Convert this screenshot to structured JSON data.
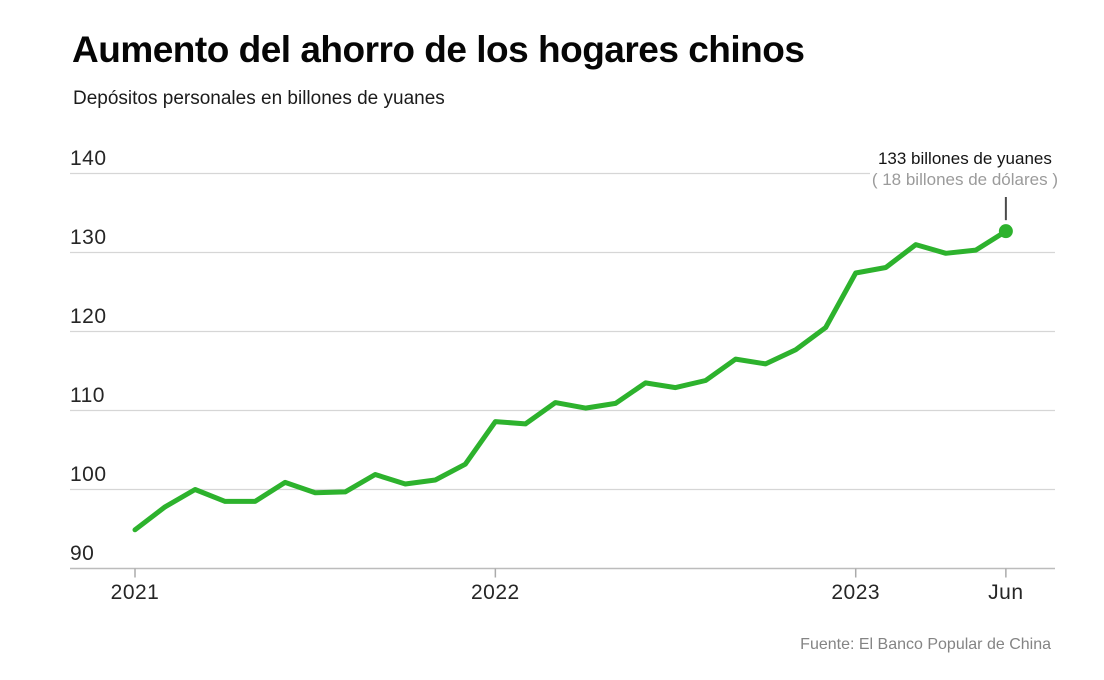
{
  "header": {
    "title": "Aumento del ahorro de los hogares chinos",
    "subtitle": "Depósitos personales en billones de yuanes"
  },
  "annotation": {
    "line1": "133 billones de yuanes",
    "line2": "( 18 billones de dólares )"
  },
  "source": "Fuente: El Banco Popular de China",
  "chart_data": {
    "type": "line",
    "title": "Aumento del ahorro de los hogares chinos",
    "subtitle": "Depósitos personales en billones de yuanes",
    "ylabel": "Depósitos personales (billones de yuanes)",
    "xlabel": "",
    "ylim": [
      90,
      140
    ],
    "grid": "horizontal",
    "legend": "none",
    "y_ticks": [
      90,
      100,
      110,
      120,
      130,
      140
    ],
    "x_tick_labels": [
      {
        "label": "2021",
        "month_index": 0
      },
      {
        "label": "2022",
        "month_index": 12
      },
      {
        "label": "2023",
        "month_index": 24
      },
      {
        "label": "Jun",
        "month_index": 29
      }
    ],
    "x": [
      "2021-01",
      "2021-02",
      "2021-03",
      "2021-04",
      "2021-05",
      "2021-06",
      "2021-07",
      "2021-08",
      "2021-09",
      "2021-10",
      "2021-11",
      "2021-12",
      "2022-01",
      "2022-02",
      "2022-03",
      "2022-04",
      "2022-05",
      "2022-06",
      "2022-07",
      "2022-08",
      "2022-09",
      "2022-10",
      "2022-11",
      "2022-12",
      "2023-01",
      "2023-02",
      "2023-03",
      "2023-04",
      "2023-05",
      "2023-06"
    ],
    "series": [
      {
        "name": "Depósitos personales",
        "values": [
          94.9,
          97.8,
          100.0,
          98.5,
          98.5,
          100.9,
          99.6,
          99.7,
          101.9,
          100.7,
          101.2,
          103.2,
          108.6,
          108.3,
          111.0,
          110.3,
          110.9,
          113.5,
          112.9,
          113.8,
          116.5,
          115.9,
          117.7,
          120.5,
          127.4,
          128.1,
          131.0,
          129.9,
          130.3,
          132.7
        ]
      }
    ],
    "end_point": {
      "x": "2023-06",
      "value": 132.7,
      "callout_line1": "133 billones de yuanes",
      "callout_line2": "( 18 billones de dólares )"
    },
    "colors": {
      "line": "#2db22d",
      "end_dot": "#2db22d",
      "grid": "#d6d6d6",
      "axis": "#bcbcbc",
      "tick": "#ababab",
      "leader": "#4a4a4a"
    }
  }
}
